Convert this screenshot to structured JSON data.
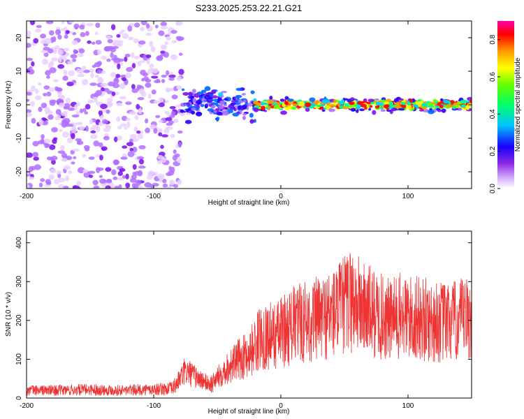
{
  "title": "S233.2025.253.22.21.G21",
  "chart_data": [
    {
      "type": "heatmap",
      "xlabel": "Height of straight line (km)",
      "ylabel": "Frequency (Hz)",
      "xlim": [
        -200,
        150
      ],
      "ylim": [
        -25,
        25
      ],
      "xticks": [
        "-200",
        "-100",
        "0",
        "100"
      ],
      "xtick_values": [
        -200,
        -100,
        0,
        100
      ],
      "yticks": [
        "20",
        "10",
        "0",
        "-10",
        "-20"
      ],
      "ytick_values": [
        20,
        10,
        0,
        -10,
        -20
      ],
      "colorbar": {
        "label": "Normalized spectral amplitude",
        "ticks": [
          "0.0",
          "0.2",
          "0.4",
          "0.6",
          "0.8"
        ],
        "tick_values": [
          0.0,
          0.2,
          0.4,
          0.6,
          0.8
        ],
        "range": [
          0,
          0.9
        ]
      },
      "regions": [
        {
          "x": [
            -200,
            -78
          ],
          "freq_spread": [
            -25,
            25
          ],
          "amplitude": [
            0.05,
            0.2
          ]
        },
        {
          "x": [
            -78,
            -20
          ],
          "freq_spread": [
            -8,
            8
          ],
          "amplitude": [
            0.1,
            0.4
          ]
        },
        {
          "x": [
            -20,
            150
          ],
          "freq_spread": [
            -2,
            2
          ],
          "amplitude": [
            0.4,
            0.85
          ]
        }
      ],
      "grid": false
    },
    {
      "type": "line",
      "xlabel": "Height of straight line (km)",
      "ylabel": "SNR (10 * v/v)",
      "xlim": [
        -200,
        150
      ],
      "ylim": [
        0,
        430
      ],
      "xticks": [
        "-200",
        "-100",
        "0",
        "100"
      ],
      "xtick_values": [
        -200,
        -100,
        0,
        100
      ],
      "yticks": [
        "0",
        "100",
        "200",
        "300",
        "400"
      ],
      "ytick_values": [
        0,
        100,
        200,
        300,
        400
      ],
      "color": "#ee3333",
      "series": [
        {
          "x": [
            -200,
            -175,
            -150,
            -125,
            -100,
            -85,
            -75,
            -65,
            -55,
            -45,
            -35,
            -25,
            -15,
            -5,
            5,
            15,
            25,
            35,
            45,
            55,
            65,
            75,
            85,
            95,
            105,
            115,
            125,
            135,
            150
          ],
          "values": [
            20,
            20,
            22,
            20,
            22,
            25,
            70,
            50,
            35,
            70,
            95,
            115,
            160,
            160,
            180,
            195,
            200,
            210,
            225,
            255,
            230,
            215,
            200,
            210,
            205,
            200,
            195,
            195,
            205
          ]
        }
      ],
      "grid": false
    }
  ]
}
